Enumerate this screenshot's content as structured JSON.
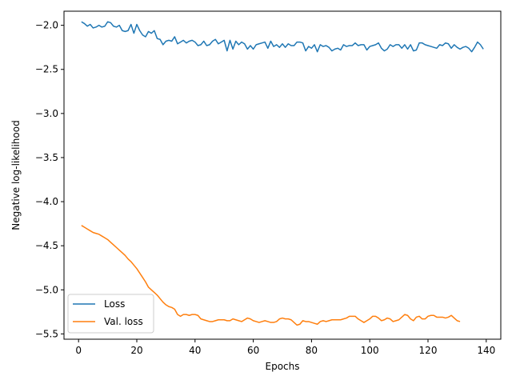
{
  "chart_data": {
    "type": "line",
    "xlabel": "Epochs",
    "ylabel": "Negative log-likelihood",
    "xlim": [
      -5,
      145
    ],
    "ylim": [
      -5.56,
      -1.84
    ],
    "xticks": [
      0,
      20,
      40,
      60,
      80,
      100,
      120,
      140
    ],
    "yticks": [
      -2.0,
      -2.5,
      -3.0,
      -3.5,
      -4.0,
      -4.5,
      -5.0,
      -5.5
    ],
    "xtick_labels": [
      "0",
      "20",
      "40",
      "60",
      "80",
      "100",
      "120",
      "140"
    ],
    "ytick_labels": [
      "−2.0",
      "−2.5",
      "−3.0",
      "−3.5",
      "−4.0",
      "−4.5",
      "−5.0",
      "−5.5"
    ],
    "grid": false,
    "legend_position": "lower-left",
    "series": [
      {
        "name": "Loss",
        "color": "#1f77b4",
        "x_start": 1,
        "x_step": 1,
        "values": [
          -1.96,
          -1.98,
          -2.01,
          -1.99,
          -2.03,
          -2.02,
          -2.0,
          -2.02,
          -2.01,
          -1.96,
          -1.97,
          -2.01,
          -2.02,
          -2.0,
          -2.06,
          -2.07,
          -2.06,
          -1.99,
          -2.09,
          -1.99,
          -2.06,
          -2.11,
          -2.13,
          -2.07,
          -2.09,
          -2.06,
          -2.15,
          -2.16,
          -2.22,
          -2.18,
          -2.17,
          -2.18,
          -2.13,
          -2.21,
          -2.19,
          -2.17,
          -2.2,
          -2.18,
          -2.17,
          -2.19,
          -2.23,
          -2.22,
          -2.18,
          -2.23,
          -2.22,
          -2.18,
          -2.16,
          -2.21,
          -2.19,
          -2.17,
          -2.29,
          -2.17,
          -2.27,
          -2.18,
          -2.22,
          -2.19,
          -2.21,
          -2.27,
          -2.23,
          -2.27,
          -2.22,
          -2.21,
          -2.2,
          -2.19,
          -2.26,
          -2.18,
          -2.24,
          -2.22,
          -2.25,
          -2.21,
          -2.25,
          -2.21,
          -2.23,
          -2.23,
          -2.19,
          -2.19,
          -2.2,
          -2.29,
          -2.24,
          -2.26,
          -2.22,
          -2.3,
          -2.22,
          -2.24,
          -2.23,
          -2.25,
          -2.29,
          -2.27,
          -2.26,
          -2.28,
          -2.22,
          -2.24,
          -2.23,
          -2.23,
          -2.2,
          -2.23,
          -2.22,
          -2.22,
          -2.28,
          -2.24,
          -2.23,
          -2.22,
          -2.2,
          -2.26,
          -2.29,
          -2.27,
          -2.22,
          -2.24,
          -2.22,
          -2.22,
          -2.26,
          -2.22,
          -2.27,
          -2.22,
          -2.29,
          -2.28,
          -2.2,
          -2.2,
          -2.22,
          -2.23,
          -2.24,
          -2.25,
          -2.26,
          -2.22,
          -2.23,
          -2.2,
          -2.21,
          -2.26,
          -2.22,
          -2.25,
          -2.27,
          -2.25,
          -2.24,
          -2.26,
          -2.3,
          -2.25,
          -2.19,
          -2.22,
          -2.27
        ]
      },
      {
        "name": "Val. loss",
        "color": "#ff7f0e",
        "x_start": 1,
        "x_step": 1,
        "values": [
          -4.27,
          -4.29,
          -4.31,
          -4.33,
          -4.35,
          -4.36,
          -4.37,
          -4.39,
          -4.41,
          -4.43,
          -4.46,
          -4.49,
          -4.52,
          -4.55,
          -4.58,
          -4.61,
          -4.65,
          -4.68,
          -4.72,
          -4.76,
          -4.81,
          -4.86,
          -4.91,
          -4.97,
          -5.0,
          -5.03,
          -5.06,
          -5.1,
          -5.14,
          -5.17,
          -5.19,
          -5.2,
          -5.22,
          -5.28,
          -5.3,
          -5.28,
          -5.28,
          -5.29,
          -5.28,
          -5.28,
          -5.29,
          -5.33,
          -5.34,
          -5.35,
          -5.36,
          -5.36,
          -5.35,
          -5.34,
          -5.34,
          -5.34,
          -5.35,
          -5.35,
          -5.33,
          -5.34,
          -5.35,
          -5.36,
          -5.34,
          -5.32,
          -5.33,
          -5.35,
          -5.36,
          -5.37,
          -5.36,
          -5.35,
          -5.36,
          -5.37,
          -5.37,
          -5.36,
          -5.33,
          -5.32,
          -5.33,
          -5.33,
          -5.34,
          -5.37,
          -5.4,
          -5.39,
          -5.35,
          -5.36,
          -5.36,
          -5.37,
          -5.38,
          -5.39,
          -5.36,
          -5.35,
          -5.36,
          -5.35,
          -5.34,
          -5.34,
          -5.34,
          -5.34,
          -5.33,
          -5.32,
          -5.3,
          -5.3,
          -5.3,
          -5.33,
          -5.35,
          -5.37,
          -5.35,
          -5.33,
          -5.3,
          -5.3,
          -5.32,
          -5.35,
          -5.34,
          -5.32,
          -5.33,
          -5.36,
          -5.35,
          -5.34,
          -5.31,
          -5.28,
          -5.29,
          -5.33,
          -5.35,
          -5.31,
          -5.3,
          -5.33,
          -5.33,
          -5.3,
          -5.29,
          -5.29,
          -5.31,
          -5.31,
          -5.31,
          -5.32,
          -5.31,
          -5.29,
          -5.32,
          -5.35,
          -5.36
        ]
      }
    ]
  }
}
